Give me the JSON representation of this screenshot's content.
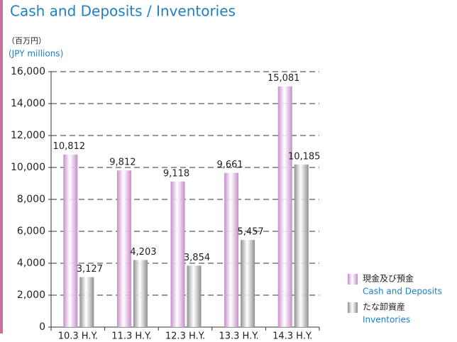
{
  "chart_data": {
    "type": "bar",
    "title": "Cash and Deposits / Inventories",
    "unit_ja": "（百万円）",
    "unit_en": "(JPY millions)",
    "categories": [
      "10.3 H.Y.",
      "11.3 H.Y.",
      "12.3 H.Y.",
      "13.3 H.Y.",
      "14.3 H.Y."
    ],
    "series": [
      {
        "name": "Cash and Deposits",
        "name_ja": "現金及び預金",
        "color": "#c68ac8",
        "values": [
          10812,
          9812,
          9118,
          9661,
          15081
        ],
        "value_labels": [
          "10,812",
          "9,812",
          "9,118",
          "9,661",
          "15,081"
        ]
      },
      {
        "name": "Inventories",
        "name_ja": "たな卸資産",
        "color": "#8c8c8c",
        "values": [
          3127,
          4203,
          3854,
          5457,
          10185
        ],
        "value_labels": [
          "3,127",
          "4,203",
          "3,854",
          "5,457",
          "10,185"
        ]
      }
    ],
    "ylim": [
      0,
      16000
    ],
    "yticks": [
      0,
      {
        "value": 2000,
        "label": "2,000"
      },
      {
        "value": 4000,
        "label": "4,000"
      },
      {
        "value": 6000,
        "label": "6,000"
      },
      {
        "value": 8000,
        "label": "8,000"
      },
      {
        "value": 10000,
        "label": "10,000"
      },
      {
        "value": 12000,
        "label": "12,000"
      },
      {
        "value": 14000,
        "label": "14,000"
      },
      {
        "value": 16000,
        "label": "16,000"
      }
    ],
    "grid": true
  }
}
